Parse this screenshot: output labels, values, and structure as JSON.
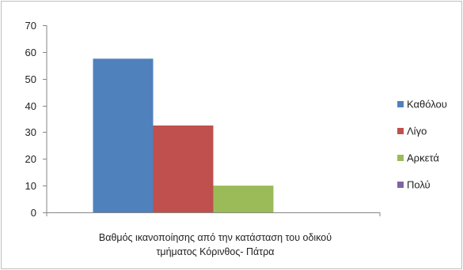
{
  "chart_data": {
    "type": "bar",
    "categories": [
      "Βαθμός ικανοποίησης από την κατάσταση του οδικού τμήματος Κόρινθος- Πάτρα"
    ],
    "category_lines": [
      "Βαθμός ικανοποίησης από την κατάσταση του οδικού",
      "τμήματος Κόρινθος- Πάτρα"
    ],
    "series": [
      {
        "name": "Καθόλου",
        "values": [
          57.5
        ],
        "color": "#4f81bd"
      },
      {
        "name": "Λίγο",
        "values": [
          32.5
        ],
        "color": "#c0504d"
      },
      {
        "name": "Αρκετά",
        "values": [
          10
        ],
        "color": "#9bbb59"
      },
      {
        "name": "Πολύ",
        "values": [
          0
        ],
        "color": "#8064a2"
      }
    ],
    "ylim": [
      0,
      70
    ],
    "yticks": [
      0,
      10,
      20,
      30,
      40,
      50,
      60,
      70
    ],
    "grid": false,
    "legend": "right",
    "title": "",
    "xlabel": "",
    "ylabel": ""
  }
}
